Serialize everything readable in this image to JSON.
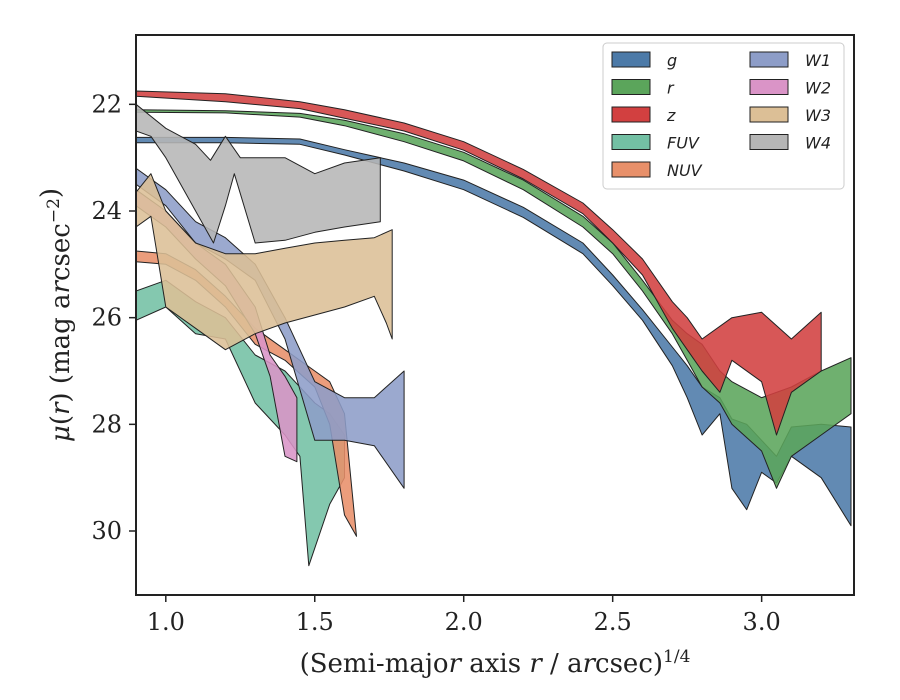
{
  "chart_data": {
    "type": "area",
    "xlabel": "(Semi-major axis r / arcsec)^{1/4}",
    "ylabel": "μ(r) (mag arcsec^{−2})",
    "xlim": [
      0.9,
      3.31
    ],
    "ylim": [
      31.2,
      20.7
    ],
    "y_inverted": true,
    "xticks": [
      1.0,
      1.5,
      2.0,
      2.5,
      3.0
    ],
    "xtick_labels": [
      "1.0",
      "1.5",
      "2.0",
      "2.5",
      "3.0"
    ],
    "yticks": [
      22,
      24,
      26,
      28,
      30
    ],
    "ytick_labels": [
      "22",
      "24",
      "26",
      "28",
      "30"
    ],
    "grid": false,
    "legend_position": "top-right",
    "legend_columns": 2,
    "series": [
      {
        "name": "g",
        "color": "#4c7aa8",
        "upper": [
          [
            0.9,
            22.62
          ],
          [
            1.2,
            22.62
          ],
          [
            1.45,
            22.65
          ],
          [
            1.6,
            22.85
          ],
          [
            1.8,
            23.1
          ],
          [
            2.0,
            23.42
          ],
          [
            2.2,
            23.93
          ],
          [
            2.4,
            24.6
          ],
          [
            2.5,
            25.2
          ],
          [
            2.6,
            25.85
          ],
          [
            2.7,
            26.55
          ],
          [
            2.75,
            26.9
          ],
          [
            2.8,
            27.3
          ],
          [
            2.86,
            27.5
          ],
          [
            2.9,
            27.9
          ],
          [
            2.95,
            28.0
          ],
          [
            3.05,
            28.6
          ],
          [
            3.1,
            28.05
          ],
          [
            3.2,
            28.0
          ],
          [
            3.3,
            28.05
          ]
        ],
        "lower": [
          [
            0.9,
            22.72
          ],
          [
            1.2,
            22.72
          ],
          [
            1.45,
            22.75
          ],
          [
            1.6,
            22.95
          ],
          [
            1.8,
            23.25
          ],
          [
            2.0,
            23.6
          ],
          [
            2.2,
            24.12
          ],
          [
            2.4,
            24.8
          ],
          [
            2.5,
            25.4
          ],
          [
            2.6,
            26.05
          ],
          [
            2.7,
            26.9
          ],
          [
            2.75,
            27.5
          ],
          [
            2.8,
            28.2
          ],
          [
            2.86,
            27.8
          ],
          [
            2.9,
            29.2
          ],
          [
            2.95,
            29.6
          ],
          [
            3.0,
            28.9
          ],
          [
            3.05,
            29.1
          ],
          [
            3.1,
            28.6
          ],
          [
            3.2,
            29.0
          ],
          [
            3.3,
            29.9
          ]
        ]
      },
      {
        "name": "r",
        "color": "#5ba55b",
        "upper": [
          [
            0.9,
            22.1
          ],
          [
            1.2,
            22.12
          ],
          [
            1.45,
            22.17
          ],
          [
            1.6,
            22.3
          ],
          [
            1.8,
            22.55
          ],
          [
            2.0,
            22.9
          ],
          [
            2.2,
            23.42
          ],
          [
            2.4,
            24.1
          ],
          [
            2.5,
            24.6
          ],
          [
            2.6,
            25.3
          ],
          [
            2.7,
            26.05
          ],
          [
            2.75,
            26.3
          ],
          [
            2.8,
            26.5
          ],
          [
            2.86,
            27.0
          ],
          [
            2.9,
            27.2
          ],
          [
            3.0,
            27.5
          ],
          [
            3.1,
            27.3
          ],
          [
            3.2,
            27.0
          ],
          [
            3.3,
            26.75
          ]
        ],
        "lower": [
          [
            0.9,
            22.15
          ],
          [
            1.2,
            22.16
          ],
          [
            1.45,
            22.24
          ],
          [
            1.6,
            22.4
          ],
          [
            1.8,
            22.7
          ],
          [
            2.0,
            23.06
          ],
          [
            2.2,
            23.6
          ],
          [
            2.4,
            24.3
          ],
          [
            2.5,
            24.8
          ],
          [
            2.6,
            25.5
          ],
          [
            2.7,
            26.3
          ],
          [
            2.75,
            26.8
          ],
          [
            2.8,
            27.3
          ],
          [
            2.86,
            27.6
          ],
          [
            2.9,
            28.0
          ],
          [
            3.0,
            28.5
          ],
          [
            3.05,
            29.2
          ],
          [
            3.1,
            28.6
          ],
          [
            3.2,
            28.2
          ],
          [
            3.3,
            27.8
          ]
        ]
      },
      {
        "name": "z",
        "color": "#d24040",
        "upper": [
          [
            0.9,
            21.75
          ],
          [
            1.2,
            21.8
          ],
          [
            1.45,
            21.95
          ],
          [
            1.6,
            22.1
          ],
          [
            1.8,
            22.35
          ],
          [
            2.0,
            22.7
          ],
          [
            2.2,
            23.22
          ],
          [
            2.4,
            23.85
          ],
          [
            2.5,
            24.35
          ],
          [
            2.6,
            24.9
          ],
          [
            2.7,
            25.7
          ],
          [
            2.75,
            26.0
          ],
          [
            2.8,
            26.4
          ],
          [
            2.9,
            26.0
          ],
          [
            3.0,
            25.9
          ],
          [
            3.1,
            26.4
          ],
          [
            3.2,
            25.9
          ]
        ],
        "lower": [
          [
            0.9,
            21.85
          ],
          [
            1.2,
            21.95
          ],
          [
            1.45,
            22.08
          ],
          [
            1.6,
            22.26
          ],
          [
            1.8,
            22.5
          ],
          [
            2.0,
            22.86
          ],
          [
            2.2,
            23.4
          ],
          [
            2.4,
            24.05
          ],
          [
            2.5,
            24.6
          ],
          [
            2.6,
            25.2
          ],
          [
            2.7,
            26.2
          ],
          [
            2.75,
            26.6
          ],
          [
            2.8,
            27.0
          ],
          [
            2.86,
            27.4
          ],
          [
            2.9,
            26.8
          ],
          [
            3.0,
            27.2
          ],
          [
            3.05,
            28.2
          ],
          [
            3.1,
            27.4
          ],
          [
            3.2,
            27.0
          ]
        ]
      },
      {
        "name": "FUV",
        "color": "#73c0a4",
        "upper": [
          [
            0.9,
            25.5
          ],
          [
            1.0,
            25.3
          ],
          [
            1.1,
            25.7
          ],
          [
            1.2,
            26.0
          ],
          [
            1.3,
            26.7
          ],
          [
            1.4,
            27.0
          ],
          [
            1.5,
            27.6
          ],
          [
            1.55,
            27.8
          ],
          [
            1.6,
            28.2
          ]
        ],
        "lower": [
          [
            0.9,
            26.05
          ],
          [
            1.0,
            25.8
          ],
          [
            1.1,
            26.3
          ],
          [
            1.2,
            26.4
          ],
          [
            1.3,
            27.6
          ],
          [
            1.4,
            28.2
          ],
          [
            1.45,
            28.6
          ],
          [
            1.48,
            30.65
          ],
          [
            1.55,
            29.5
          ],
          [
            1.6,
            29.0
          ]
        ]
      },
      {
        "name": "NUV",
        "color": "#e8906a",
        "upper": [
          [
            0.9,
            24.75
          ],
          [
            1.0,
            24.8
          ],
          [
            1.1,
            25.1
          ],
          [
            1.2,
            25.6
          ],
          [
            1.3,
            26.2
          ],
          [
            1.4,
            26.6
          ],
          [
            1.5,
            27.0
          ],
          [
            1.55,
            27.2
          ],
          [
            1.6,
            27.8
          ]
        ],
        "lower": [
          [
            0.9,
            24.95
          ],
          [
            1.0,
            25.0
          ],
          [
            1.1,
            25.3
          ],
          [
            1.2,
            25.8
          ],
          [
            1.3,
            26.5
          ],
          [
            1.4,
            26.8
          ],
          [
            1.5,
            27.3
          ],
          [
            1.55,
            28.0
          ],
          [
            1.6,
            29.7
          ],
          [
            1.64,
            30.1
          ]
        ]
      },
      {
        "name": "W1",
        "color": "#8d9dc8",
        "upper": [
          [
            0.9,
            23.2
          ],
          [
            1.0,
            23.6
          ],
          [
            1.1,
            24.2
          ],
          [
            1.2,
            24.5
          ],
          [
            1.3,
            25.0
          ],
          [
            1.4,
            26.0
          ],
          [
            1.5,
            27.2
          ],
          [
            1.6,
            27.5
          ],
          [
            1.7,
            27.5
          ],
          [
            1.8,
            27.0
          ]
        ],
        "lower": [
          [
            0.9,
            23.5
          ],
          [
            1.0,
            23.9
          ],
          [
            1.1,
            24.6
          ],
          [
            1.2,
            24.9
          ],
          [
            1.3,
            25.3
          ],
          [
            1.4,
            26.4
          ],
          [
            1.5,
            28.3
          ],
          [
            1.6,
            28.3
          ],
          [
            1.7,
            28.4
          ],
          [
            1.8,
            29.2
          ]
        ]
      },
      {
        "name": "W2",
        "color": "#da94c7",
        "upper": [
          [
            0.9,
            23.6
          ],
          [
            1.0,
            24.0
          ],
          [
            1.1,
            24.6
          ],
          [
            1.2,
            25.0
          ],
          [
            1.3,
            25.8
          ],
          [
            1.35,
            26.7
          ],
          [
            1.4,
            27.1
          ],
          [
            1.44,
            27.5
          ]
        ],
        "lower": [
          [
            0.9,
            23.9
          ],
          [
            1.0,
            24.3
          ],
          [
            1.1,
            24.9
          ],
          [
            1.2,
            25.4
          ],
          [
            1.3,
            26.3
          ],
          [
            1.35,
            27.1
          ],
          [
            1.4,
            28.6
          ],
          [
            1.44,
            28.7
          ]
        ]
      },
      {
        "name": "W3",
        "color": "#dcbf96",
        "upper": [
          [
            0.9,
            23.65
          ],
          [
            0.95,
            23.3
          ],
          [
            1.0,
            24.0
          ],
          [
            1.1,
            24.6
          ],
          [
            1.2,
            24.8
          ],
          [
            1.3,
            24.8
          ],
          [
            1.4,
            24.7
          ],
          [
            1.5,
            24.6
          ],
          [
            1.6,
            24.55
          ],
          [
            1.7,
            24.5
          ],
          [
            1.76,
            24.35
          ]
        ],
        "lower": [
          [
            0.9,
            24.3
          ],
          [
            0.95,
            24.1
          ],
          [
            1.0,
            25.8
          ],
          [
            1.1,
            26.2
          ],
          [
            1.2,
            26.6
          ],
          [
            1.3,
            26.3
          ],
          [
            1.4,
            26.1
          ],
          [
            1.5,
            25.95
          ],
          [
            1.6,
            25.8
          ],
          [
            1.7,
            25.6
          ],
          [
            1.74,
            26.1
          ],
          [
            1.76,
            26.4
          ]
        ]
      },
      {
        "name": "W4",
        "color": "#b6b6b6",
        "upper": [
          [
            0.9,
            22.0
          ],
          [
            1.0,
            22.45
          ],
          [
            1.1,
            22.75
          ],
          [
            1.15,
            23.05
          ],
          [
            1.2,
            22.6
          ],
          [
            1.25,
            23.0
          ],
          [
            1.4,
            23.0
          ],
          [
            1.5,
            23.3
          ],
          [
            1.6,
            23.1
          ],
          [
            1.72,
            23.0
          ]
        ],
        "lower": [
          [
            0.9,
            22.5
          ],
          [
            0.95,
            22.6
          ],
          [
            1.0,
            23.0
          ],
          [
            1.1,
            24.0
          ],
          [
            1.16,
            24.6
          ],
          [
            1.2,
            23.9
          ],
          [
            1.23,
            23.3
          ],
          [
            1.3,
            24.6
          ],
          [
            1.4,
            24.55
          ],
          [
            1.5,
            24.4
          ],
          [
            1.6,
            24.3
          ],
          [
            1.72,
            24.2
          ]
        ]
      }
    ]
  }
}
